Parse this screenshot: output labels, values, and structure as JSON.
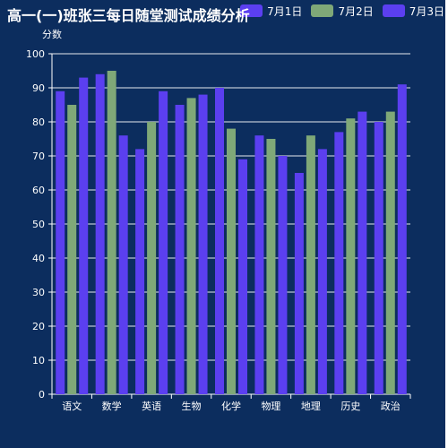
{
  "page": {
    "title": "高一(一)班张三每日随堂测试成绩分析"
  },
  "legend": {
    "items": [
      {
        "label": "7月1日",
        "color": "#5b3ff0"
      },
      {
        "label": "7月2日",
        "color": "#7fa878"
      },
      {
        "label": "7月3日",
        "color": "#5b3ff0"
      }
    ]
  },
  "chart_data": {
    "type": "bar",
    "title": "高一(一)班张三每日随堂测试成绩分析",
    "ylabel": "分数",
    "xlabel": "",
    "ylim": [
      0,
      100
    ],
    "yticks": [
      0,
      10,
      20,
      30,
      40,
      50,
      60,
      70,
      80,
      90,
      100
    ],
    "grid": true,
    "legend_position": "top-right",
    "categories": [
      "语文",
      "数学",
      "英语",
      "生物",
      "化学",
      "物理",
      "地理",
      "历史",
      "政治"
    ],
    "series": [
      {
        "name": "7月1日",
        "color": "#5b3ff0",
        "values": [
          89,
          94,
          72,
          85,
          90,
          76,
          65,
          77,
          80
        ]
      },
      {
        "name": "7月2日",
        "color": "#7fa878",
        "values": [
          85,
          95,
          80,
          87,
          78,
          75,
          76,
          81,
          83
        ]
      },
      {
        "name": "7月3日",
        "color": "#5b3ff0",
        "values": [
          93,
          76,
          89,
          88,
          69,
          70,
          72,
          83,
          91
        ]
      }
    ]
  }
}
